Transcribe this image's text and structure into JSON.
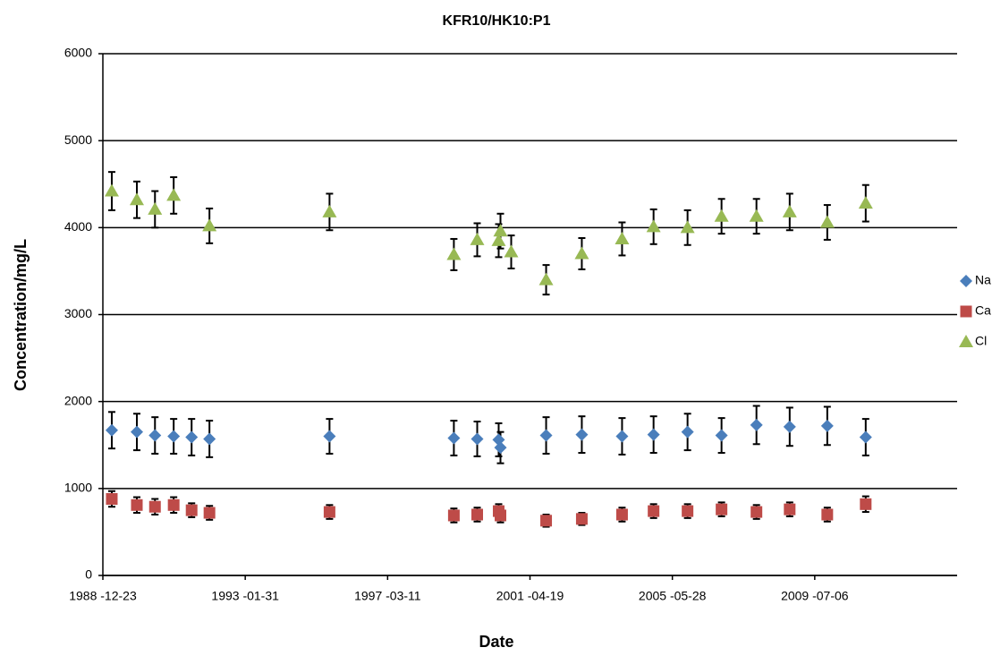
{
  "chart_data": {
    "type": "scatter",
    "title": "KFR10/HK10:P1",
    "x_label": "Date",
    "y_label": "Concentration/mg/L",
    "x": [
      "1989-03-27",
      "1989-12-16",
      "1990-06-25",
      "1991-01-08",
      "1991-07-16",
      "1992-01-20",
      "1995-07-08",
      "1999-02-07",
      "1999-10-11",
      "2000-05-24",
      "2000-06-12",
      "2000-10-03",
      "2001-10-06",
      "2002-10-17",
      "2003-12-15",
      "2004-11-11",
      "2005-11-04",
      "2006-10-28",
      "2007-10-31",
      "2008-10-15",
      "2009-11-15",
      "2010-12-25"
    ],
    "series": [
      {
        "name": "Na",
        "color": "#4a7ebb",
        "marker": "diamond",
        "values": [
          1670,
          1650,
          1610,
          1600,
          1590,
          1570,
          1600,
          1580,
          1570,
          1560,
          1470,
          null,
          1610,
          1620,
          1600,
          1620,
          1650,
          1610,
          1730,
          1710,
          1720,
          1590
        ],
        "errors": [
          210,
          210,
          210,
          200,
          210,
          210,
          200,
          200,
          200,
          190,
          180,
          null,
          210,
          210,
          210,
          210,
          210,
          200,
          220,
          220,
          220,
          210
        ]
      },
      {
        "name": "Ca",
        "color": "#be4b48",
        "marker": "square",
        "values": [
          880,
          810,
          790,
          810,
          750,
          720,
          730,
          690,
          700,
          740,
          690,
          null,
          630,
          650,
          700,
          740,
          740,
          760,
          730,
          760,
          700,
          820
        ],
        "errors": [
          90,
          90,
          90,
          90,
          80,
          80,
          80,
          80,
          80,
          80,
          80,
          null,
          70,
          70,
          80,
          80,
          80,
          80,
          80,
          80,
          80,
          90
        ]
      },
      {
        "name": "Cl",
        "color": "#98b954",
        "marker": "triangle",
        "values": [
          4420,
          4320,
          4210,
          4370,
          null,
          4020,
          4180,
          3690,
          3860,
          3850,
          3960,
          3720,
          3400,
          3700,
          3870,
          4010,
          4000,
          4130,
          4130,
          4180,
          4060,
          4280
        ],
        "errors": [
          220,
          210,
          210,
          210,
          null,
          200,
          210,
          180,
          190,
          190,
          200,
          190,
          170,
          180,
          190,
          200,
          200,
          200,
          200,
          210,
          200,
          210
        ]
      }
    ],
    "xlim": [
      "1988-12-23",
      "2013-08-14"
    ],
    "xticks": [
      {
        "value": "1988-12-23",
        "label": "1988 -12-23"
      },
      {
        "value": "1993-01-31",
        "label": "1993 -01-31"
      },
      {
        "value": "1997-03-11",
        "label": "1997 -03-11"
      },
      {
        "value": "2001-04-19",
        "label": "2001 -04-19"
      },
      {
        "value": "2005-05-28",
        "label": "2005 -05-28"
      },
      {
        "value": "2009-07-06",
        "label": "2009 -07-06"
      }
    ],
    "ylim": [
      0,
      6000
    ],
    "yticks": [
      0,
      1000,
      2000,
      3000,
      4000,
      5000,
      6000
    ],
    "grid": true,
    "legend": "right"
  }
}
